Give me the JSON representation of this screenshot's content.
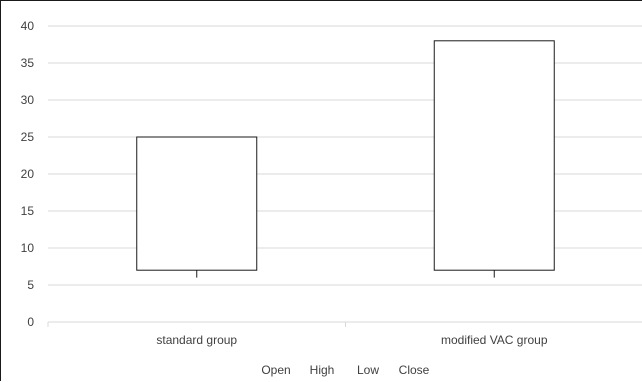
{
  "chart_data": {
    "type": "stock",
    "categories": [
      "standard group",
      "modified VAC group"
    ],
    "series": [
      {
        "name": "Open",
        "values": [
          25,
          38
        ]
      },
      {
        "name": "High",
        "values": [
          25,
          38
        ]
      },
      {
        "name": "Low",
        "values": [
          6,
          6
        ]
      },
      {
        "name": "Close",
        "values": [
          7,
          7
        ]
      }
    ],
    "ylim": [
      0,
      40
    ],
    "yticks": [
      0,
      5,
      10,
      15,
      20,
      25,
      30,
      35,
      40
    ],
    "grid": true,
    "legend": {
      "position": "bottom",
      "entries": [
        "Open",
        "High",
        "Low",
        "Close"
      ]
    },
    "colors": {
      "box_fill": "#ffffff",
      "stroke": "#1a1a1a",
      "grid": "#d9d9d9",
      "text": "#404040"
    }
  }
}
